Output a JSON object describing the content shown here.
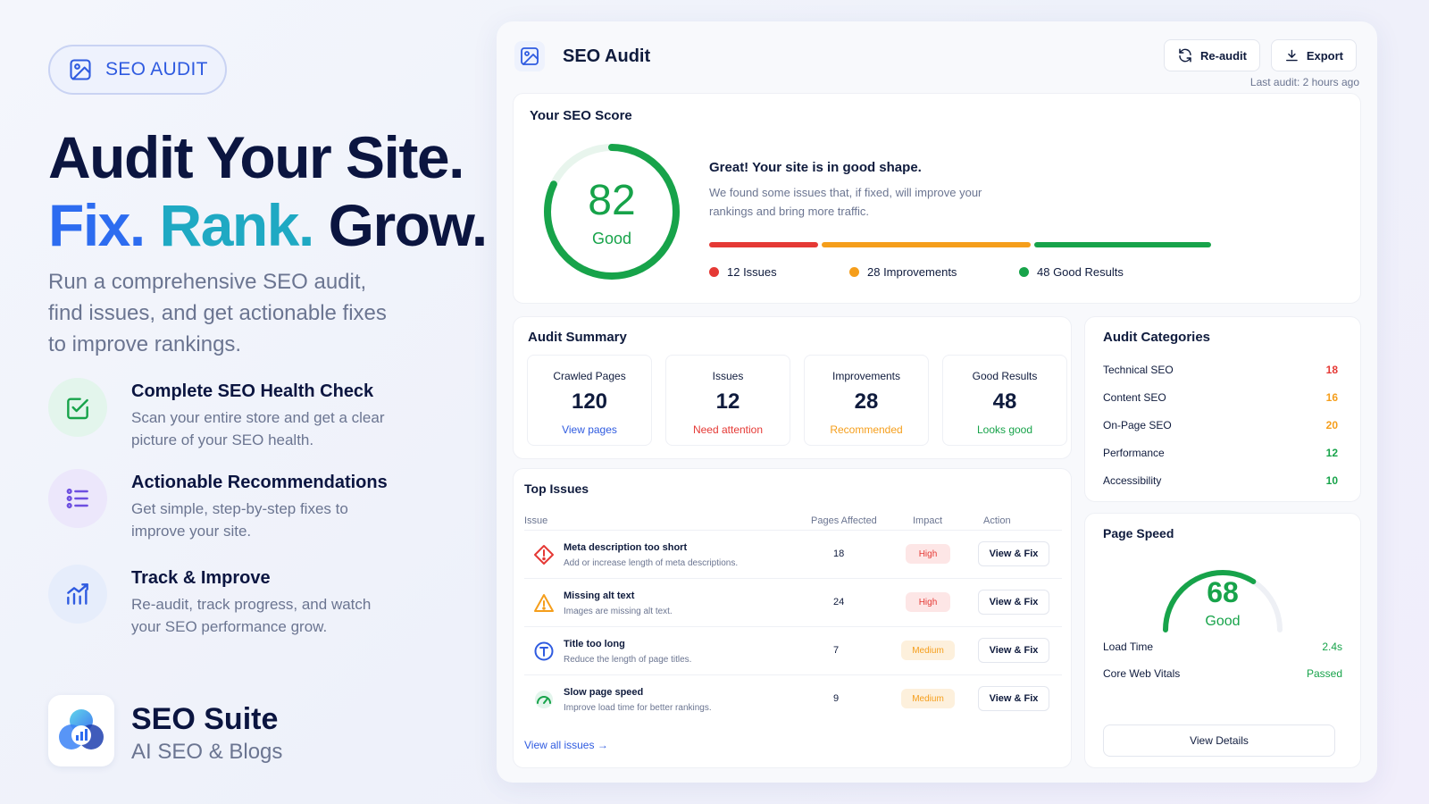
{
  "colors": {
    "navy": "#0b1540",
    "blue": "#2d6cf0",
    "teal": "#1fa9c3",
    "green": "#17a34a",
    "red": "#e53935",
    "orange": "#f59e1b",
    "muted": "#6b7591"
  },
  "promo": {
    "badge": {
      "icon": "image-icon",
      "label": "SEO AUDIT"
    },
    "headline": {
      "line1": "Audit Your Site.",
      "fix": "Fix.",
      "rank": "Rank.",
      "grow": "Grow."
    },
    "lead": "Run a comprehensive SEO audit, find issues, and get actionable fixes to improve rankings.",
    "features": [
      {
        "icon": "checklist-icon",
        "title": "Complete SEO Health Check",
        "desc": "Scan your entire store and get a clear picture of your SEO health."
      },
      {
        "icon": "list-icon",
        "title": "Actionable Recommendations",
        "desc": "Get simple, step-by-step fixes to improve your site."
      },
      {
        "icon": "growth-chart-icon",
        "title": "Track & Improve",
        "desc": "Re-audit, track progress, and watch your SEO performance grow."
      }
    ],
    "brand": {
      "name": "SEO Suite",
      "subtitle": "AI SEO & Blogs"
    }
  },
  "app": {
    "title": "SEO Audit",
    "reaudit_label": "Re-audit",
    "export_label": "Export",
    "last_audit": "Last audit: 2 hours ago",
    "score": {
      "heading": "Your SEO Score",
      "value": 82,
      "value_text": "82",
      "label": "Good",
      "message_title": "Great! Your site is in good shape.",
      "message_body": "We found some issues that, if fixed, will improve your rankings and bring more traffic.",
      "legend": [
        {
          "label": "12 Issues",
          "color": "#e53935"
        },
        {
          "label": "28 Improvements",
          "color": "#f59e1b"
        },
        {
          "label": "48 Good Results",
          "color": "#17a34a"
        }
      ]
    },
    "summary": {
      "heading": "Audit Summary",
      "stats": [
        {
          "label": "Crawled Pages",
          "value": "120",
          "sub": "View pages",
          "color": "#2f5be0"
        },
        {
          "label": "Issues",
          "value": "12",
          "sub": "Need attention",
          "color": "#e53935"
        },
        {
          "label": "Improvements",
          "value": "28",
          "sub": "Recommended",
          "color": "#f59e1b"
        },
        {
          "label": "Good Results",
          "value": "48",
          "sub": "Looks good",
          "color": "#17a34a"
        }
      ]
    },
    "categories": {
      "heading": "Audit Categories",
      "items": [
        {
          "label": "Technical SEO",
          "value": "18",
          "color": "#e53935"
        },
        {
          "label": "Content SEO",
          "value": "16",
          "color": "#f59e1b"
        },
        {
          "label": "On-Page SEO",
          "value": "20",
          "color": "#f59e1b"
        },
        {
          "label": "Performance",
          "value": "12",
          "color": "#17a34a"
        },
        {
          "label": "Accessibility",
          "value": "10",
          "color": "#17a34a"
        }
      ]
    },
    "issues": {
      "heading": "Top Issues",
      "columns": {
        "issue": "Issue",
        "pages": "Pages Affected",
        "impact": "Impact",
        "action": "Action"
      },
      "rows": [
        {
          "icon": "alert-diamond-icon",
          "title": "Meta description too short",
          "desc": "Add or increase length of meta descriptions.",
          "pages": "18",
          "impact": "High",
          "action": "View & Fix"
        },
        {
          "icon": "warning-triangle-icon",
          "title": "Missing alt text",
          "desc": "Images are missing alt text.",
          "pages": "24",
          "impact": "High",
          "action": "View & Fix"
        },
        {
          "icon": "title-t-icon",
          "title": "Title too long",
          "desc": "Reduce the length of page titles.",
          "pages": "7",
          "impact": "Medium",
          "action": "View & Fix"
        },
        {
          "icon": "speedometer-icon",
          "title": "Slow page speed",
          "desc": "Improve load time for better rankings.",
          "pages": "9",
          "impact": "Medium",
          "action": "View & Fix"
        }
      ],
      "view_all": "View all issues →"
    },
    "speed": {
      "heading": "Page Speed",
      "value": 68,
      "value_text": "68",
      "label": "Good",
      "load_time_label": "Load Time",
      "load_time_value": "2.4s",
      "cwv_label": "Core Web Vitals",
      "cwv_value": "Passed",
      "details_label": "View Details"
    }
  }
}
